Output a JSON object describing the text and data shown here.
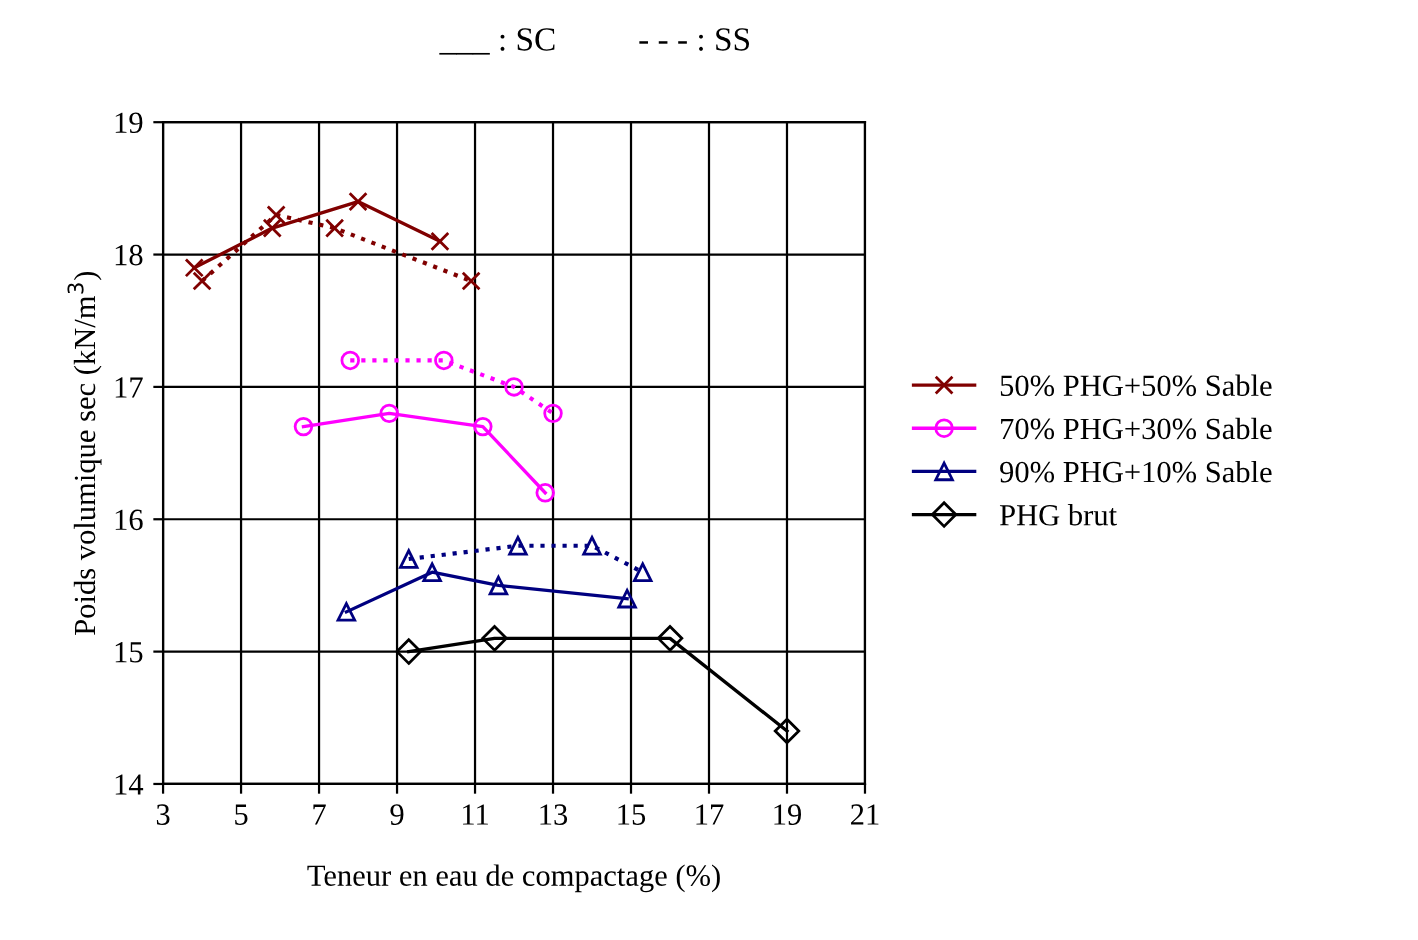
{
  "chart_data": {
    "type": "line",
    "xlabel": "Teneur en eau de compactage (%)",
    "ylabel": "Poids volumique sec (kN/m$^{3}$)",
    "annotations": [
      "___ : SC",
      "- - - : SS"
    ],
    "xlim": [
      3,
      21
    ],
    "xticks": [
      3,
      5,
      7,
      9,
      11,
      13,
      15,
      17,
      19,
      21
    ],
    "ylim": [
      14,
      19
    ],
    "yticks": [
      14,
      15,
      16,
      17,
      18,
      19
    ],
    "grid": true,
    "legend": "right",
    "series": [
      {
        "name": "50% PHG+50% Sable",
        "color": "#800000",
        "marker": "cross",
        "line_style": "solid",
        "x": [
          3.8,
          5.8,
          8.0,
          10.1
        ],
        "values": [
          17.9,
          18.2,
          18.4,
          18.1
        ]
      },
      {
        "name": "70% PHG+30% Sable",
        "color": "#ff00ff",
        "marker": "circle",
        "line_style": "solid",
        "x": [
          6.6,
          8.8,
          11.2,
          12.8
        ],
        "values": [
          16.7,
          16.8,
          16.7,
          16.2
        ]
      },
      {
        "name": "90% PHG+10% Sable",
        "color": "#000080",
        "marker": "triangle",
        "line_style": "solid",
        "x": [
          7.7,
          9.9,
          11.6,
          14.9
        ],
        "values": [
          15.3,
          15.6,
          15.5,
          15.4
        ]
      },
      {
        "name": "PHG brut",
        "color": "#000000",
        "marker": "diamond",
        "line_style": "solid",
        "x": [
          9.3,
          11.5,
          16.0,
          19.0
        ],
        "values": [
          15.0,
          15.1,
          15.1,
          14.4
        ]
      },
      {
        "color": "#800000",
        "marker": "cross",
        "line_style": "dotted",
        "x": [
          4.0,
          5.9,
          7.4,
          10.9
        ],
        "values": [
          17.8,
          18.3,
          18.2,
          17.8
        ]
      },
      {
        "color": "#ff00ff",
        "marker": "circle",
        "line_style": "dotted",
        "x": [
          7.8,
          10.2,
          12.0,
          13.0
        ],
        "values": [
          17.2,
          17.2,
          17.0,
          16.8
        ]
      },
      {
        "color": "#000080",
        "marker": "triangle",
        "line_style": "dotted",
        "x": [
          9.3,
          12.1,
          14.0,
          15.3
        ],
        "values": [
          15.7,
          15.8,
          15.8,
          15.6
        ]
      }
    ]
  }
}
